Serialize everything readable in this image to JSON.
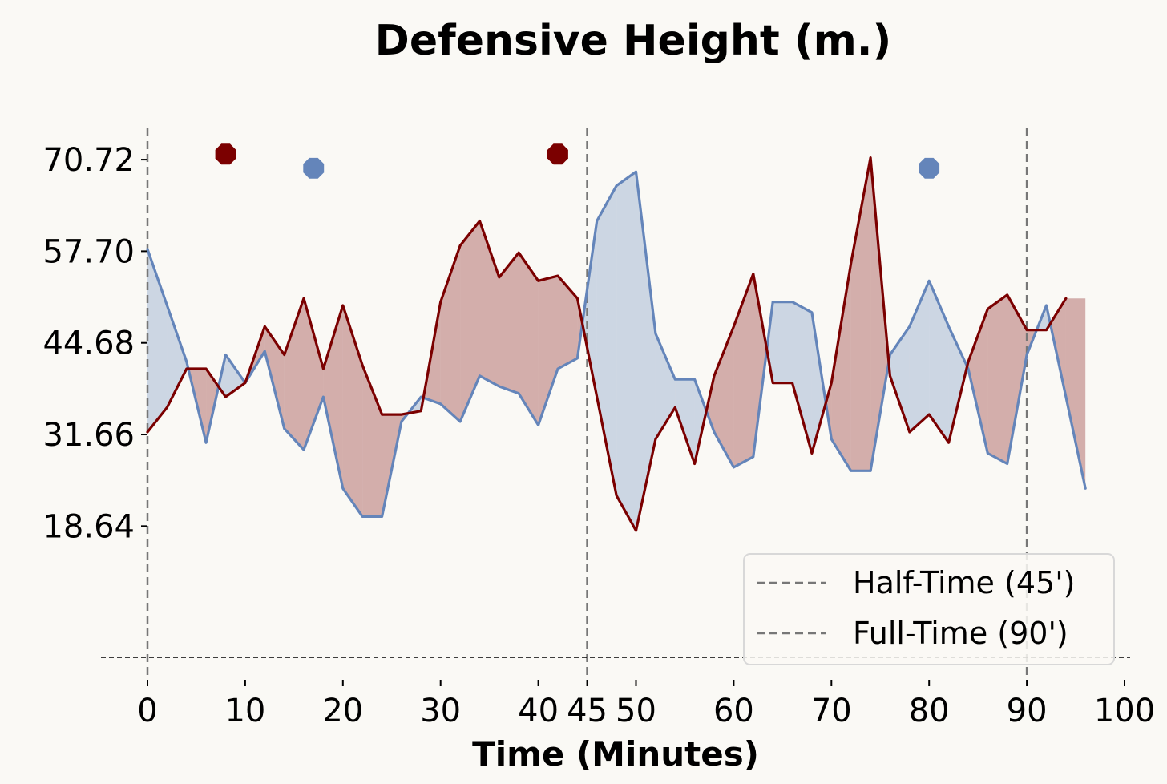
{
  "chart_data": {
    "type": "line",
    "title": "Defensive Height (m.)",
    "xlabel": "Time (Minutes)",
    "ylabel": "",
    "xlim": [
      -5,
      100
    ],
    "ylim": [
      0,
      75
    ],
    "xticks": [
      0,
      10,
      20,
      30,
      40,
      45,
      50,
      60,
      70,
      80,
      90,
      100
    ],
    "xtick_labels": [
      "0",
      "10",
      "20",
      "30",
      "40",
      "45",
      "50",
      "60",
      "70",
      "80",
      "90",
      "100"
    ],
    "yticks": [
      18.64,
      31.66,
      44.68,
      57.7,
      70.72
    ],
    "ytick_labels": [
      "18.64",
      "31.66",
      "44.68",
      "57.70",
      "70.72"
    ],
    "grid": false,
    "x": [
      0,
      2,
      4,
      6,
      8,
      10,
      12,
      14,
      16,
      18,
      20,
      22,
      24,
      26,
      28,
      30,
      32,
      34,
      36,
      38,
      40,
      42,
      44,
      46,
      48,
      50,
      52,
      54,
      56,
      58,
      60,
      62,
      64,
      66,
      68,
      70,
      72,
      74,
      76,
      78,
      80,
      82,
      84,
      86,
      88,
      90,
      92,
      94,
      96
    ],
    "series": [
      {
        "color": "#7b0000",
        "values": [
          32.0,
          35.5,
          41.0,
          41.0,
          37.0,
          39.0,
          47.0,
          43.0,
          51.0,
          41.0,
          50.0,
          41.5,
          34.5,
          34.5,
          35.0,
          50.5,
          58.5,
          62.0,
          54.0,
          57.5,
          53.5,
          54.2,
          51.0,
          37.0,
          23.0,
          18.0,
          31.0,
          35.5,
          27.5,
          40.0,
          47.0,
          54.5,
          39.0,
          39.0,
          29.0,
          39.0,
          56.0,
          71.0,
          40.0,
          32.0,
          34.5,
          30.5,
          42.0,
          49.5,
          51.5,
          46.5,
          46.5,
          51.0,
          null
        ]
      },
      {
        "color": "#6485ba",
        "values": [
          58.0,
          50.0,
          42.0,
          30.5,
          43.0,
          39.0,
          43.5,
          32.5,
          29.5,
          37.0,
          24.0,
          20.0,
          20.0,
          33.5,
          37.0,
          36.0,
          33.5,
          40.0,
          38.5,
          37.5,
          33.0,
          41.0,
          42.5,
          62.0,
          67.0,
          69.0,
          46.0,
          39.5,
          39.5,
          32.0,
          27.0,
          28.5,
          50.5,
          50.5,
          49.0,
          31.0,
          26.5,
          26.5,
          43.0,
          47.0,
          53.5,
          47.0,
          41.0,
          29.0,
          27.5,
          43.0,
          50.0,
          37.0,
          24.0
        ]
      }
    ],
    "markers": [
      {
        "x": 8,
        "y": 71.5,
        "color": "#7b0000"
      },
      {
        "x": 17,
        "y": 69.5,
        "color": "#6485ba"
      },
      {
        "x": 42,
        "y": 71.5,
        "color": "#7b0000"
      },
      {
        "x": 80,
        "y": 69.5,
        "color": "#6485ba"
      }
    ],
    "vlines": [
      0,
      45,
      90
    ],
    "baseline_y": 0,
    "legend": {
      "placement": "lower-right",
      "entries": [
        "Half-Time (45')",
        "Full-Time (90')"
      ]
    }
  }
}
